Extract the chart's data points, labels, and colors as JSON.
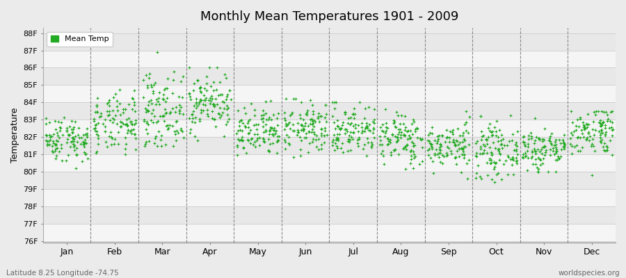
{
  "title": "Monthly Mean Temperatures 1901 - 2009",
  "ylabel": "Temperature",
  "xlabel_bottom_left": "Latitude 8.25 Longitude -74.75",
  "xlabel_bottom_right": "worldspecies.org",
  "legend_label": "Mean Temp",
  "ymin": 76,
  "ymax": 88,
  "months": [
    "Jan",
    "Feb",
    "Mar",
    "Apr",
    "May",
    "Jun",
    "Jul",
    "Aug",
    "Sep",
    "Oct",
    "Nov",
    "Dec"
  ],
  "dot_color": "#22AA22",
  "background_color": "#EBEBEB",
  "plot_bg_color": "#EBEBEB",
  "band_light": "#F5F5F5",
  "band_dark": "#E8E8E8",
  "grid_color": "#CCCCCC",
  "n_years": 109,
  "seed": 42,
  "monthly_means": [
    81.9,
    82.7,
    83.5,
    84.0,
    82.2,
    82.5,
    82.4,
    81.9,
    81.5,
    81.2,
    81.3,
    82.4
  ],
  "monthly_stds": [
    0.65,
    0.85,
    1.1,
    0.85,
    0.75,
    0.75,
    0.75,
    0.75,
    0.65,
    0.75,
    0.65,
    0.75
  ],
  "monthly_mins": [
    79.5,
    79.5,
    81.5,
    81.8,
    80.3,
    80.2,
    80.0,
    79.5,
    79.0,
    79.0,
    80.0,
    79.2
  ],
  "monthly_maxs": [
    84.5,
    85.0,
    87.2,
    86.0,
    84.5,
    84.2,
    84.0,
    84.0,
    83.5,
    83.5,
    83.5,
    83.5
  ]
}
